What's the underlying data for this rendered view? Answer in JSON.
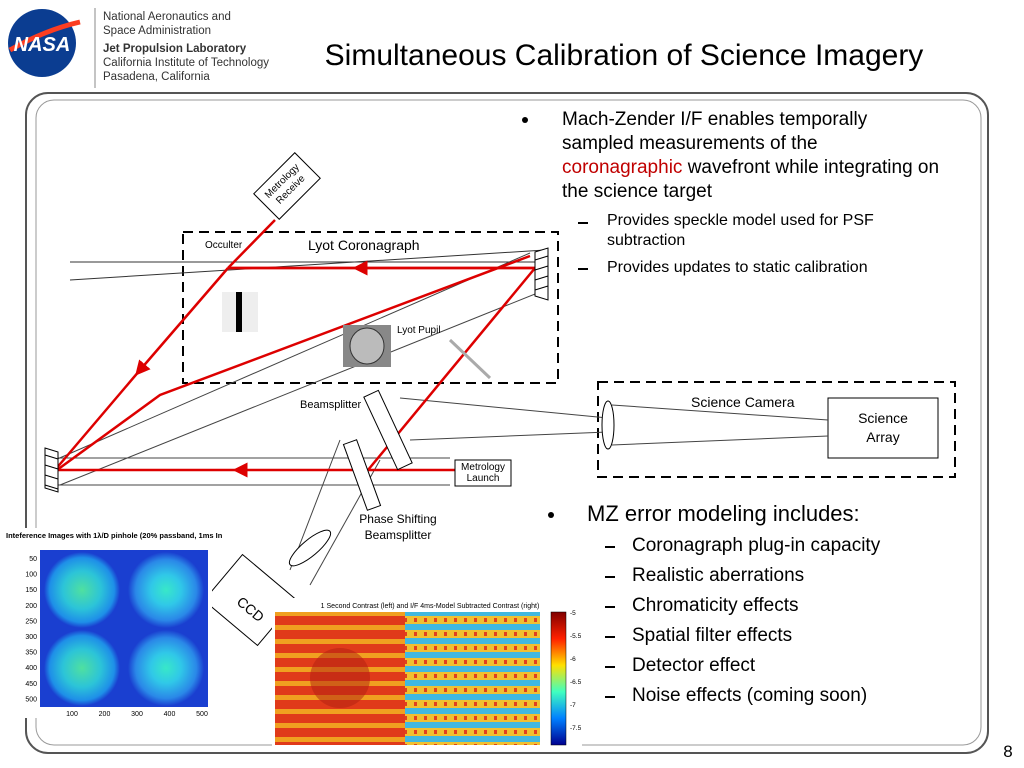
{
  "header": {
    "logo": "NASA",
    "org": [
      "National Aeronautics and",
      "Space Administration"
    ],
    "lab": [
      "Jet Propulsion Laboratory",
      "California Institute of Technology",
      "Pasadena, California"
    ],
    "title": "Simultaneous Calibration of Science Imagery"
  },
  "bullets": [
    {
      "text": [
        "Mach-Zender I/F enables temporally sampled measurements of the ",
        "coronagraphic",
        " wavefront while integrating on the science target"
      ],
      "sub": [
        "Provides speckle model used for PSF subtraction",
        "Provides updates to static calibration"
      ]
    },
    {
      "text": "MZ error modeling includes:",
      "sub": [
        "Coronagraph plug-in capacity",
        "Realistic aberrations",
        "Chromaticity effects",
        "Spatial filter effects",
        "Detector effect",
        "Noise effects (coming soon)"
      ]
    }
  ],
  "diagram": {
    "metrology_receive": [
      "Metrology",
      "Receive"
    ],
    "occulter": "Occulter",
    "lyot_coronagraph": "Lyot Coronagraph",
    "lyot_pupil": "Lyot Pupil",
    "beamsplitter": "Beamsplitter",
    "science_camera": "Science Camera",
    "science_array": [
      "Science",
      "Array"
    ],
    "metrology_launch": [
      "Metrology",
      "Launch"
    ],
    "phase_shifting": [
      "Phase Shifting",
      "Beamsplitter"
    ],
    "ccd": "CCD"
  },
  "interference_inset": {
    "title": "Inteference Images with 1λ/D pinhole (20% passband, 1ms In",
    "yticks": [
      "50",
      "100",
      "150",
      "200",
      "250",
      "300",
      "350",
      "400",
      "450",
      "500"
    ],
    "xticks": [
      "100",
      "200",
      "300",
      "400",
      "500"
    ]
  },
  "contrast_inset": {
    "title": "1 Second Contrast (left) and I/F 4ms-Model Subtracted Contrast (right)",
    "colorbar_ticks": [
      "-5",
      "-5.5",
      "-6",
      "-6.5",
      "-7",
      "-7.5"
    ]
  },
  "footer": {
    "page": "8"
  }
}
